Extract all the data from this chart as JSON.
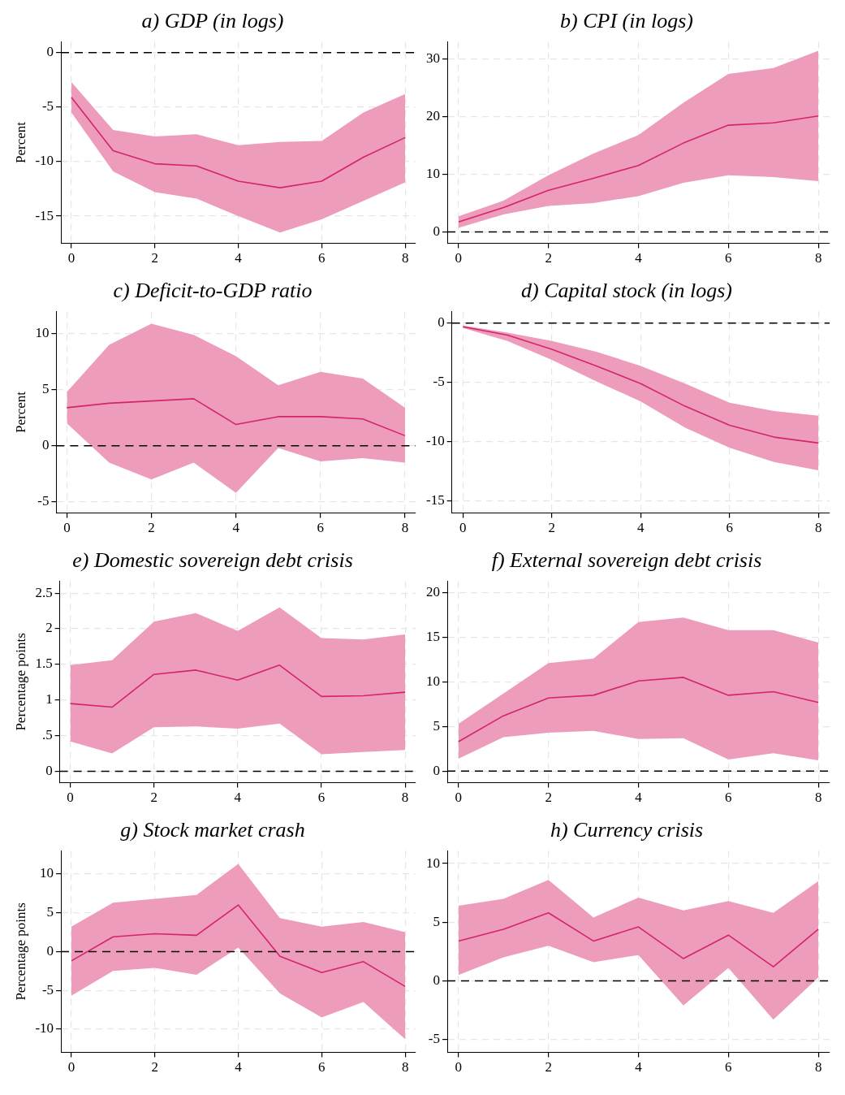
{
  "chart_data": [
    {
      "type": "line",
      "title": "a) GDP (in logs)",
      "ylabel": "Percent",
      "x": [
        0,
        1,
        2,
        3,
        4,
        5,
        6,
        7,
        8
      ],
      "xlim": [
        -0.25,
        8.25
      ],
      "xticks": [
        0,
        2,
        4,
        6,
        8
      ],
      "ylim": [
        -17.5,
        1
      ],
      "yticks": [
        -15,
        -10,
        -5,
        0
      ],
      "grid": true,
      "legend": false,
      "marker": "none",
      "line_style": "solid",
      "ref_lines": [
        {
          "axis": "y",
          "value": 0,
          "color": "#000000",
          "line_style": "dashed"
        }
      ],
      "series": [
        {
          "color": "#d6246a",
          "values": [
            -4.1,
            -9,
            -10.2,
            -10.4,
            -11.8,
            -12.4,
            -11.8,
            -9.6,
            -7.8
          ],
          "lower": [
            -5.5,
            -10.9,
            -12.8,
            -13.4,
            -15,
            -16.5,
            -15.3,
            -13.6,
            -11.9
          ],
          "upper": [
            -2.7,
            -7.1,
            -7.7,
            -7.5,
            -8.5,
            -8.2,
            -8.1,
            -5.5,
            -3.8
          ]
        }
      ]
    },
    {
      "type": "line",
      "title": "b) CPI (in logs)",
      "x": [
        0,
        1,
        2,
        3,
        4,
        5,
        6,
        7,
        8
      ],
      "xlim": [
        -0.25,
        8.25
      ],
      "xticks": [
        0,
        2,
        4,
        6,
        8
      ],
      "ylim": [
        -2,
        33
      ],
      "yticks": [
        0,
        10,
        20,
        30
      ],
      "grid": true,
      "legend": false,
      "marker": "none",
      "line_style": "solid",
      "ref_lines": [
        {
          "axis": "y",
          "value": 0,
          "color": "#000000",
          "line_style": "dashed"
        }
      ],
      "series": [
        {
          "color": "#d6246a",
          "values": [
            1.7,
            4.2,
            7.2,
            9.3,
            11.5,
            15.4,
            18.5,
            18.9,
            20.1
          ],
          "lower": [
            0.7,
            3,
            4.5,
            5,
            6.2,
            8.5,
            9.8,
            9.5,
            8.8
          ],
          "upper": [
            2.7,
            5.4,
            9.8,
            13.6,
            16.8,
            22.4,
            27.4,
            28.4,
            31.4
          ]
        }
      ]
    },
    {
      "type": "line",
      "title": "c) Deficit-to-GDP ratio",
      "ylabel": "Percent",
      "x": [
        0,
        1,
        2,
        3,
        4,
        5,
        6,
        7,
        8
      ],
      "xlim": [
        -0.25,
        8.25
      ],
      "xticks": [
        0,
        2,
        4,
        6,
        8
      ],
      "ylim": [
        -6,
        12
      ],
      "yticks": [
        -5,
        0,
        5,
        10
      ],
      "grid": true,
      "legend": false,
      "marker": "none",
      "line_style": "solid",
      "ref_lines": [
        {
          "axis": "y",
          "value": 0,
          "color": "#000000",
          "line_style": "dashed"
        }
      ],
      "series": [
        {
          "color": "#d6246a",
          "values": [
            3.4,
            3.8,
            4,
            4.2,
            1.9,
            2.6,
            2.6,
            2.4,
            0.9
          ],
          "lower": [
            2,
            -1.5,
            -3,
            -1.5,
            -4.2,
            -0.2,
            -1.4,
            -1.1,
            -1.5
          ],
          "upper": [
            4.8,
            9,
            10.9,
            9.9,
            8,
            5.4,
            6.6,
            6,
            3.4
          ]
        }
      ]
    },
    {
      "type": "line",
      "title": "d) Capital stock (in logs)",
      "x": [
        0,
        1,
        2,
        3,
        4,
        5,
        6,
        7,
        8
      ],
      "xlim": [
        -0.25,
        8.25
      ],
      "xticks": [
        0,
        2,
        4,
        6,
        8
      ],
      "ylim": [
        -16,
        1
      ],
      "yticks": [
        -15,
        -10,
        -5,
        0
      ],
      "grid": true,
      "legend": false,
      "marker": "none",
      "line_style": "solid",
      "ref_lines": [
        {
          "axis": "y",
          "value": 0,
          "color": "#000000",
          "line_style": "dashed"
        }
      ],
      "series": [
        {
          "color": "#d6246a",
          "values": [
            -0.3,
            -1,
            -2.2,
            -3.6,
            -5.1,
            -7,
            -8.6,
            -9.6,
            -10.1
          ],
          "lower": [
            -0.4,
            -1.5,
            -3.1,
            -4.9,
            -6.6,
            -8.8,
            -10.5,
            -11.7,
            -12.4
          ],
          "upper": [
            -0.2,
            -0.8,
            -1.5,
            -2.4,
            -3.6,
            -5.1,
            -6.7,
            -7.4,
            -7.8
          ]
        }
      ]
    },
    {
      "type": "line",
      "title": "e) Domestic sovereign debt crisis",
      "ylabel": "Percentage points",
      "x": [
        0,
        1,
        2,
        3,
        4,
        5,
        6,
        7,
        8
      ],
      "xlim": [
        -0.25,
        8.25
      ],
      "xticks": [
        0,
        2,
        4,
        6,
        8
      ],
      "ylim": [
        -0.16,
        2.67
      ],
      "yticks": [
        0,
        {
          "value": 0.5,
          "label": ".5"
        },
        1,
        1.5,
        2,
        2.5
      ],
      "grid": true,
      "legend": false,
      "marker": "none",
      "line_style": "solid",
      "ref_lines": [
        {
          "axis": "y",
          "value": 0,
          "color": "#000000",
          "line_style": "dashed"
        }
      ],
      "series": [
        {
          "color": "#d6246a",
          "values": [
            0.95,
            0.9,
            1.36,
            1.42,
            1.28,
            1.49,
            1.05,
            1.06,
            1.11
          ],
          "lower": [
            0.42,
            0.25,
            0.62,
            0.63,
            0.6,
            0.67,
            0.24,
            0.27,
            0.3
          ],
          "upper": [
            1.49,
            1.56,
            2.1,
            2.22,
            1.97,
            2.3,
            1.87,
            1.85,
            1.92
          ]
        }
      ]
    },
    {
      "type": "line",
      "title": "f) External sovereign debt crisis",
      "x": [
        0,
        1,
        2,
        3,
        4,
        5,
        6,
        7,
        8
      ],
      "xlim": [
        -0.25,
        8.25
      ],
      "xticks": [
        0,
        2,
        4,
        6,
        8
      ],
      "ylim": [
        -1.3,
        21.3
      ],
      "yticks": [
        0,
        5,
        10,
        15,
        20
      ],
      "grid": true,
      "legend": false,
      "marker": "none",
      "line_style": "solid",
      "ref_lines": [
        {
          "axis": "y",
          "value": 0,
          "color": "#000000",
          "line_style": "dashed"
        }
      ],
      "series": [
        {
          "color": "#d6246a",
          "values": [
            3.3,
            6.2,
            8.2,
            8.5,
            10.1,
            10.5,
            8.5,
            8.9,
            7.7
          ],
          "lower": [
            1.4,
            3.8,
            4.3,
            4.5,
            3.6,
            3.7,
            1.3,
            2,
            1.2
          ],
          "upper": [
            5.3,
            8.7,
            12.1,
            12.6,
            16.7,
            17.2,
            15.8,
            15.8,
            14.4
          ]
        }
      ]
    },
    {
      "type": "line",
      "title": "g) Stock market crash",
      "ylabel": "Percentage points",
      "x": [
        0,
        1,
        2,
        3,
        4,
        5,
        6,
        7,
        8
      ],
      "xlim": [
        -0.25,
        8.25
      ],
      "xticks": [
        0,
        2,
        4,
        6,
        8
      ],
      "ylim": [
        -13,
        13
      ],
      "yticks": [
        -10,
        -5,
        0,
        5,
        10
      ],
      "grid": true,
      "legend": false,
      "marker": "none",
      "line_style": "solid",
      "ref_lines": [
        {
          "axis": "y",
          "value": 0,
          "color": "#000000",
          "line_style": "dashed"
        }
      ],
      "series": [
        {
          "color": "#d6246a",
          "values": [
            -1.2,
            1.9,
            2.3,
            2.1,
            6,
            -0.6,
            -2.7,
            -1.3,
            -4.5
          ],
          "lower": [
            -5.7,
            -2.5,
            -2.1,
            -3,
            0.5,
            -5.4,
            -8.5,
            -6.5,
            -11.3
          ],
          "upper": [
            3.2,
            6.3,
            6.8,
            7.3,
            11.3,
            4.3,
            3.2,
            3.8,
            2.5
          ]
        }
      ]
    },
    {
      "type": "line",
      "title": "h) Currency crisis",
      "x": [
        0,
        1,
        2,
        3,
        4,
        5,
        6,
        7,
        8
      ],
      "xlim": [
        -0.25,
        8.25
      ],
      "xticks": [
        0,
        2,
        4,
        6,
        8
      ],
      "ylim": [
        -6.1,
        11.1
      ],
      "yticks": [
        -5,
        0,
        5,
        10
      ],
      "grid": true,
      "legend": false,
      "marker": "none",
      "line_style": "solid",
      "ref_lines": [
        {
          "axis": "y",
          "value": 0,
          "color": "#000000",
          "line_style": "dashed"
        }
      ],
      "series": [
        {
          "color": "#d6246a",
          "values": [
            3.4,
            4.4,
            5.8,
            3.4,
            4.6,
            1.9,
            3.9,
            1.2,
            4.4
          ],
          "lower": [
            0.5,
            2,
            3,
            1.6,
            2.2,
            -2.1,
            1.1,
            -3.3,
            0.3
          ],
          "upper": [
            6.4,
            7,
            8.6,
            5.4,
            7.1,
            6,
            6.8,
            5.8,
            8.5
          ]
        }
      ]
    }
  ]
}
